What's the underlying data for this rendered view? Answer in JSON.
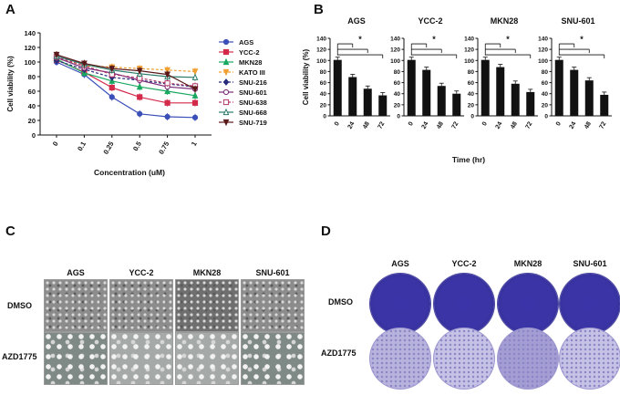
{
  "panels": {
    "a": "A",
    "b": "B",
    "c": "C",
    "d": "D"
  },
  "chart_data": [
    {
      "id": "A",
      "type": "line",
      "xlabel": "Concentration (uM)",
      "ylabel": "Cell viability (%)",
      "categories": [
        "0",
        "0.1",
        "0.25",
        "0.5",
        "0.75",
        "1"
      ],
      "ylim": [
        0,
        140
      ],
      "yticks": [
        0,
        20,
        40,
        60,
        80,
        100,
        120,
        140
      ],
      "legend_position": "right",
      "series": [
        {
          "name": "AGS",
          "color": "#3a4fb8",
          "marker": "circle",
          "dash": false,
          "values": [
            100,
            83,
            52,
            29,
            25,
            24
          ]
        },
        {
          "name": "YCC-2",
          "color": "#d42a4a",
          "marker": "square",
          "dash": false,
          "values": [
            103,
            86,
            65,
            52,
            44,
            44
          ]
        },
        {
          "name": "MKN28",
          "color": "#18a860",
          "marker": "triangle-up",
          "dash": false,
          "values": [
            104,
            85,
            74,
            66,
            60,
            54
          ]
        },
        {
          "name": "KATO III",
          "color": "#f0a032",
          "marker": "triangle-down",
          "dash": true,
          "values": [
            105,
            95,
            93,
            91,
            89,
            87
          ]
        },
        {
          "name": "SNU-216",
          "color": "#272b7a",
          "marker": "diamond",
          "dash": true,
          "values": [
            102,
            90,
            79,
            75,
            70,
            66
          ]
        },
        {
          "name": "SNU-601",
          "color": "#7a2a7a",
          "marker": "circle-open",
          "dash": false,
          "values": [
            106,
            92,
            85,
            75,
            66,
            63
          ]
        },
        {
          "name": "SNU-638",
          "color": "#b03a6a",
          "marker": "square-open",
          "dash": true,
          "values": [
            107,
            95,
            83,
            78,
            71,
            67
          ]
        },
        {
          "name": "SNU-668",
          "color": "#2a7a6a",
          "marker": "triangle-open",
          "dash": false,
          "values": [
            108,
            97,
            89,
            84,
            80,
            79
          ]
        },
        {
          "name": "SNU-719",
          "color": "#5a1a1a",
          "marker": "triangle-down",
          "dash": false,
          "values": [
            110,
            98,
            91,
            88,
            83,
            63
          ]
        }
      ]
    },
    {
      "id": "B",
      "type": "bar",
      "ylabel": "Cell viability (%)",
      "xlabel": "Time (hr)",
      "ylim": [
        0,
        140
      ],
      "yticks": [
        0,
        20,
        40,
        60,
        80,
        100,
        120,
        140
      ],
      "categories": [
        "0",
        "24",
        "48",
        "72"
      ],
      "significance": "*",
      "groups": [
        {
          "title": "AGS",
          "values": [
            101,
            70,
            49,
            37
          ]
        },
        {
          "title": "YCC-2",
          "values": [
            101,
            83,
            54,
            40
          ]
        },
        {
          "title": "MKN28",
          "values": [
            101,
            88,
            58,
            43
          ]
        },
        {
          "title": "SNU-601",
          "values": [
            101,
            83,
            64,
            38
          ]
        }
      ]
    }
  ],
  "panel_c": {
    "columns": [
      "AGS",
      "YCC-2",
      "MKN28",
      "SNU-601"
    ],
    "rows": [
      "DMSO",
      "AZD1775"
    ]
  },
  "panel_d": {
    "columns": [
      "AGS",
      "YCC-2",
      "MKN28",
      "SNU-601"
    ],
    "rows": [
      "DMSO",
      "AZD1775"
    ]
  }
}
